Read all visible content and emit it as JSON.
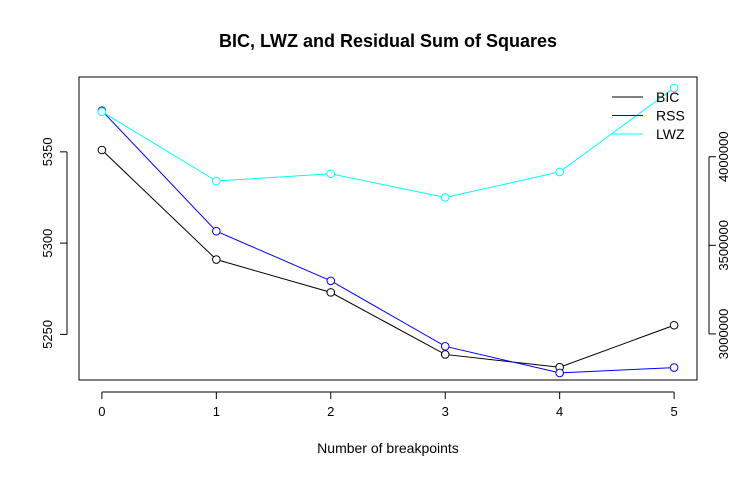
{
  "chart_data": {
    "type": "line",
    "title": "BIC, LWZ and Residual Sum of Squares",
    "xlabel": "Number of breakpoints",
    "ylabel": "",
    "x": [
      0,
      1,
      2,
      3,
      4,
      5
    ],
    "xlim": [
      -0.2,
      5.2
    ],
    "x_ticks": [
      0,
      1,
      2,
      3,
      4,
      5
    ],
    "left_axis": {
      "ylim": [
        5225,
        5391
      ],
      "ticks": [
        5250,
        5300,
        5350
      ],
      "tick_labels": [
        "5250",
        "5300",
        "5350"
      ]
    },
    "right_axis": {
      "ylim": [
        2740000,
        4450000
      ],
      "ticks": [
        3000000,
        3500000,
        4000000
      ],
      "tick_labels": [
        "3000000",
        "3500000",
        "4000000"
      ]
    },
    "grid": false,
    "legend_position": "top-right",
    "series": [
      {
        "name": "BIC",
        "axis": "left",
        "color": "#000000",
        "values": [
          5351,
          5291,
          5273,
          5239,
          5232,
          5255
        ]
      },
      {
        "name": "RSS",
        "axis": "right",
        "color": "#0000ff",
        "values": [
          4260000,
          3580000,
          3300000,
          2930000,
          2780000,
          2810000
        ]
      },
      {
        "name": "LWZ",
        "axis": "left",
        "color": "#00ffff",
        "values": [
          5372,
          5334,
          5338,
          5325,
          5339,
          5385
        ]
      }
    ]
  }
}
